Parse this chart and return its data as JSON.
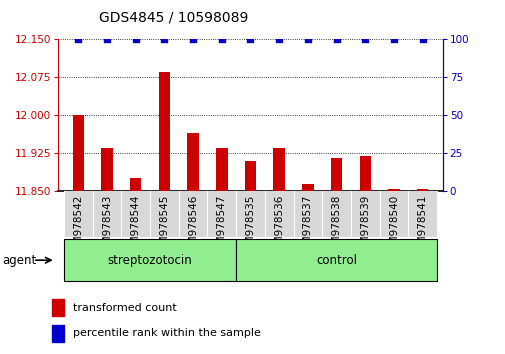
{
  "title": "GDS4845 / 10598089",
  "categories": [
    "GSM978542",
    "GSM978543",
    "GSM978544",
    "GSM978545",
    "GSM978546",
    "GSM978547",
    "GSM978535",
    "GSM978536",
    "GSM978537",
    "GSM978538",
    "GSM978539",
    "GSM978540",
    "GSM978541"
  ],
  "bar_values": [
    12.0,
    11.935,
    11.875,
    12.085,
    11.965,
    11.935,
    11.91,
    11.935,
    11.865,
    11.915,
    11.92,
    11.855,
    11.855
  ],
  "percentile_values": [
    100,
    100,
    100,
    100,
    100,
    100,
    100,
    100,
    100,
    100,
    100,
    100,
    100
  ],
  "ylim_left": [
    11.85,
    12.15
  ],
  "ylim_right": [
    0,
    100
  ],
  "yticks_left": [
    11.85,
    11.925,
    12.0,
    12.075,
    12.15
  ],
  "yticks_right": [
    0,
    25,
    50,
    75,
    100
  ],
  "bar_color": "#cc0000",
  "dot_color": "#0000cc",
  "bar_bottom": 11.85,
  "group_strep_label": "streptozotocin",
  "group_ctrl_label": "control",
  "group_color": "#90ee90",
  "agent_label": "agent",
  "legend_bar_label": "transformed count",
  "legend_dot_label": "percentile rank within the sample",
  "title_fontsize": 10,
  "tick_fontsize": 7.5,
  "label_fontsize": 8.5,
  "xlabel_cell_color": "#d8d8d8"
}
